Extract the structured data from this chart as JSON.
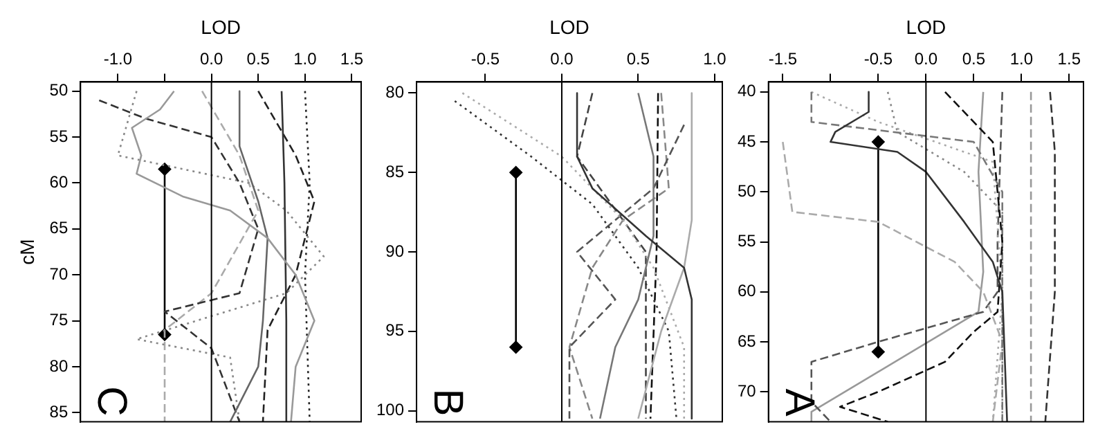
{
  "chart_data": [
    {
      "type": "line",
      "xlabel": "LOD",
      "ylabel": "cM",
      "annotations": [
        "C"
      ],
      "xlim": [
        -1.4,
        1.6
      ],
      "xticks": [
        {
          "value": -1,
          "label": "-1.0"
        },
        {
          "value": -0.5,
          "label": null
        },
        {
          "value": 0,
          "label": "0.0"
        },
        0.5,
        {
          "value": 1,
          "label": "1.0"
        },
        1.5
      ],
      "ylim": [
        86,
        49
      ],
      "yticks": [
        50,
        55,
        60,
        65,
        70,
        75,
        80,
        85
      ],
      "grid": false,
      "legend": false,
      "marker": "none",
      "ref_lines": [
        {
          "axis": "x",
          "value": 0,
          "color": "#000000"
        }
      ],
      "series": [
        {
          "color": "#999999",
          "line_style": "solid",
          "x": [
            -0.4,
            -0.55,
            -0.85,
            -0.75,
            -0.8,
            -0.3,
            0.2,
            0.6,
            0.9,
            1.1,
            0.9,
            0.85
          ],
          "values": [
            50,
            52,
            54,
            57,
            59,
            61.5,
            63,
            66,
            70,
            75,
            80,
            86
          ]
        },
        {
          "color": "#333333",
          "line_style": "solid",
          "x": [
            0.75,
            0.78,
            0.8,
            0.8
          ],
          "values": [
            50,
            60,
            75,
            86
          ]
        },
        {
          "color": "#666666",
          "line_style": "solid",
          "x": [
            0.3,
            0.3,
            0.5,
            0.6,
            0.55,
            0.5,
            0.2
          ],
          "values": [
            50,
            56,
            62,
            66,
            75,
            80,
            86
          ]
        },
        {
          "color": "#333333",
          "line_style": "dashed",
          "x": [
            -1.2,
            -0.7,
            0,
            0.3,
            0.5,
            0.3,
            -0.5,
            0,
            0.3
          ],
          "values": [
            51,
            53,
            55,
            60,
            65,
            72,
            74,
            78,
            86
          ]
        },
        {
          "color": "#888888",
          "line_style": "dotted",
          "x": [
            -0.8,
            -1.0,
            0.4,
            0.8,
            1.2,
            0.8,
            -0.8,
            0.2,
            0.3
          ],
          "values": [
            50,
            57,
            60,
            63,
            68,
            72,
            77,
            79,
            86
          ]
        },
        {
          "color": "#222222",
          "line_style": "dashed",
          "x": [
            0.5,
            0.9,
            1.1,
            0.9,
            0.6,
            0.55
          ],
          "values": [
            50,
            57,
            62,
            70,
            76,
            86
          ]
        },
        {
          "color": "#222222",
          "line_style": "dotted",
          "x": [
            1.0,
            1.05,
            1.0,
            1.05
          ],
          "values": [
            50,
            60,
            70,
            86
          ]
        },
        {
          "color": "#aaaaaa",
          "line_style": "dashed",
          "x": [
            -0.1,
            0.3,
            0.5,
            0.0,
            -0.5,
            -0.5
          ],
          "values": [
            50,
            57,
            63,
            72,
            76,
            86
          ]
        },
        {
          "color": "#000000",
          "line_style": "solid",
          "marker": "diamond",
          "x": [
            -0.5,
            -0.5
          ],
          "values": [
            58.5,
            76.5
          ]
        }
      ]
    },
    {
      "type": "line",
      "xlabel": "LOD",
      "annotations": [
        "B"
      ],
      "xlim": [
        -0.95,
        1.05
      ],
      "xticks": [
        -0.5,
        {
          "value": 0,
          "label": "0.0"
        },
        0.5,
        {
          "value": 1,
          "label": "1.0"
        }
      ],
      "ylim": [
        100.7,
        79.3
      ],
      "yticks": [
        80,
        85,
        90,
        95,
        100
      ],
      "grid": false,
      "legend": false,
      "marker": "none",
      "ref_lines": [
        {
          "axis": "x",
          "value": 0,
          "color": "#000000"
        }
      ],
      "series": [
        {
          "color": "#333333",
          "line_style": "solid",
          "x": [
            0.1,
            0.1,
            0.2,
            0.55,
            0.8,
            0.85,
            0.85
          ],
          "values": [
            80,
            84,
            86,
            89,
            91,
            93,
            100.5
          ]
        },
        {
          "color": "#777777",
          "line_style": "solid",
          "x": [
            0.5,
            0.6,
            0.6,
            0.5,
            0.35,
            0.25
          ],
          "values": [
            80,
            84,
            89,
            93,
            96,
            100.5
          ]
        },
        {
          "color": "#aaaaaa",
          "line_style": "solid",
          "x": [
            0.85,
            0.85,
            0.8,
            0.65,
            0.5
          ],
          "values": [
            80,
            88,
            91,
            95,
            100.5
          ]
        },
        {
          "color": "#aaaaaa",
          "line_style": "dotted",
          "x": [
            -0.65,
            0.0,
            0.4,
            0.6,
            0.8,
            0.8
          ],
          "values": [
            80,
            84,
            88,
            91,
            96,
            100.5
          ]
        },
        {
          "color": "#333333",
          "line_style": "dotted",
          "x": [
            -0.7,
            -0.2,
            0.2,
            0.5,
            0.7,
            0.75
          ],
          "values": [
            80.5,
            84,
            87,
            91,
            95,
            100.5
          ]
        },
        {
          "color": "#444444",
          "line_style": "dashed",
          "x": [
            0.2,
            0.1,
            0.4,
            0.55,
            0.55
          ],
          "values": [
            80,
            84,
            88,
            90,
            100.5
          ]
        },
        {
          "color": "#555555",
          "line_style": "dashed",
          "x": [
            0.8,
            0.6,
            0.1,
            0.35,
            0.05,
            0.05
          ],
          "values": [
            82,
            86,
            90,
            93,
            96,
            100.5
          ]
        },
        {
          "color": "#888888",
          "line_style": "dashed",
          "x": [
            0.65,
            0.7,
            0.4,
            0.2,
            0.05,
            0.2
          ],
          "values": [
            80,
            86,
            88,
            91,
            96,
            100.5
          ]
        },
        {
          "color": "#111111",
          "line_style": "dashed",
          "x": [
            0.63,
            0.62,
            0.58
          ],
          "values": [
            80,
            90,
            100.5
          ]
        },
        {
          "color": "#000000",
          "line_style": "solid",
          "marker": "diamond",
          "x": [
            -0.3,
            -0.3
          ],
          "values": [
            85,
            96
          ]
        }
      ]
    },
    {
      "type": "line",
      "xlabel": "LOD",
      "annotations": [
        "A"
      ],
      "xlim": [
        -1.65,
        1.65
      ],
      "xticks": [
        -1.5,
        {
          "value": -1,
          "label": null
        },
        -0.5,
        {
          "value": 0,
          "label": "0.0"
        },
        0.5,
        {
          "value": 1,
          "label": "1.0"
        },
        1.5
      ],
      "ylim": [
        73,
        39
      ],
      "yticks": [
        40,
        45,
        50,
        55,
        60,
        65,
        70
      ],
      "grid": false,
      "legend": false,
      "marker": "none",
      "ref_lines": [
        {
          "axis": "x",
          "value": 0,
          "color": "#000000"
        }
      ],
      "series": [
        {
          "color": "#333333",
          "line_style": "solid",
          "x": [
            -0.6,
            -0.6,
            -0.95,
            -1.0,
            -0.3,
            0.0,
            0.4,
            0.7,
            0.8,
            0.85
          ],
          "values": [
            40,
            42,
            44,
            45,
            46,
            48,
            53,
            57,
            60,
            73
          ]
        },
        {
          "color": "#111111",
          "line_style": "dashed",
          "x": [
            0.2,
            0.7,
            0.8,
            0.75,
            0.5,
            0.2,
            -0.5,
            -0.9,
            -0.4
          ],
          "values": [
            40,
            45,
            55,
            62,
            64,
            67,
            70,
            71.5,
            73
          ]
        },
        {
          "color": "#777777",
          "line_style": "dashed",
          "x": [
            -1.2,
            -1.2,
            0.5,
            0.8,
            0.8
          ],
          "values": [
            40,
            43,
            45,
            50,
            73
          ]
        },
        {
          "color": "#aaaaaa",
          "line_style": "dotted",
          "x": [
            -1.2,
            -0.5,
            0.7,
            0.8,
            0.7
          ],
          "values": [
            40,
            43,
            47,
            60,
            73
          ]
        },
        {
          "color": "#aaaaaa",
          "line_style": "dashed",
          "x": [
            -1.5,
            -1.4,
            -0.5,
            0.3,
            0.6,
            0.8,
            0.7
          ],
          "values": [
            45,
            52,
            53,
            57,
            60,
            65,
            73
          ]
        },
        {
          "color": "#555555",
          "line_style": "dashed",
          "x": [
            0.8,
            0.75,
            0.75,
            0.6,
            -0.5,
            -1.2,
            -1.2,
            -1.0
          ],
          "values": [
            40,
            55,
            60,
            62,
            65,
            67,
            71,
            73
          ]
        },
        {
          "color": "#333333",
          "line_style": "dashed",
          "x": [
            1.3,
            1.35,
            1.35,
            1.25
          ],
          "values": [
            40,
            46,
            60,
            73
          ]
        },
        {
          "color": "#999999",
          "line_style": "solid",
          "x": [
            0.6,
            0.55,
            0.6,
            0.55,
            -0.5,
            -1.2,
            -1.2
          ],
          "values": [
            40,
            48,
            58,
            62,
            68,
            72,
            73
          ]
        },
        {
          "color": "#888888",
          "line_style": "dotted",
          "x": [
            -0.4,
            -0.3,
            0.4,
            0.8,
            0.8
          ],
          "values": [
            40,
            44,
            48,
            52,
            73
          ]
        },
        {
          "color": "#999999",
          "line_style": "dashed",
          "x": [
            1.1,
            1.1
          ],
          "values": [
            40,
            73
          ]
        },
        {
          "color": "#000000",
          "line_style": "solid",
          "marker": "diamond",
          "x": [
            -0.5,
            -0.5
          ],
          "values": [
            45,
            66
          ]
        }
      ]
    }
  ]
}
